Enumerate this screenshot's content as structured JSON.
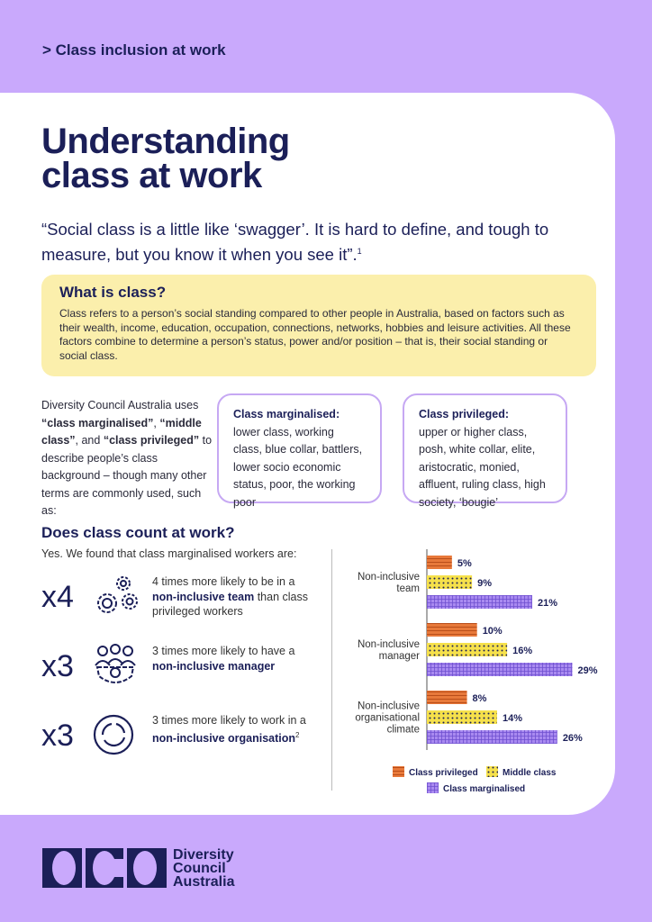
{
  "header": {
    "breadcrumb": "> Class inclusion at work"
  },
  "title": {
    "line1": "Understanding",
    "line2": "class at work"
  },
  "quote": {
    "text": "“Social class is a little like ‘swagger’. It is hard to define, and tough to measure, but you know it when you see it”.",
    "footnote": "1"
  },
  "what_is_class": {
    "heading": "What is class?",
    "body": "Class refers to a person’s social standing compared to other people in Australia, based on factors such as their wealth, income, education, occupation, connections, networks, hobbies and leisure activities. All these factors combine to determine a person’s status, power and/or position – that is, their social standing or social class."
  },
  "intro": {
    "p1": "Diversity Council Australia uses ",
    "t1": "“class marginalised”",
    "p2": ", ",
    "t2": "“middle class”",
    "p3": ", and ",
    "t3": "“class privileged”",
    "p4": " to describe people’s class background – though many other terms are commonly used, such as:"
  },
  "terms": [
    {
      "heading": "Class marginalised:",
      "body": "lower class, working class, blue collar, battlers, lower socio economic status, poor, the working poor"
    },
    {
      "heading": "Class privileged:",
      "body": "upper or higher class, posh, white collar, elite, aristocratic, monied, affluent, ruling class, high society, ‘bougie’"
    }
  ],
  "count": {
    "heading": "Does class count at work?",
    "intro": "Yes. We found that class marginalised workers are:"
  },
  "stats": [
    {
      "multiplier": "x4",
      "icon": "gears-icon",
      "pre": "4 times more likely to be in a ",
      "bold": "non-inclusive team",
      "post": " than class privileged workers",
      "sup": ""
    },
    {
      "multiplier": "x3",
      "icon": "team-gear-icon",
      "pre": "3 times more likely to have a ",
      "bold": "non-inclusive manager",
      "post": "",
      "sup": ""
    },
    {
      "multiplier": "x3",
      "icon": "cycle-circle-icon",
      "pre": "3 times more likely to work in a ",
      "bold": "non-inclusive organisation",
      "post": "",
      "sup": "2"
    }
  ],
  "chart_data": {
    "type": "bar",
    "orientation": "horizontal",
    "categories": [
      "Non-inclusive team",
      "Non-inclusive manager",
      "Non-inclusive organisational climate"
    ],
    "category_lines": [
      [
        "Non-inclusive",
        "team"
      ],
      [
        "Non-inclusive",
        "manager"
      ],
      [
        "Non-inclusive",
        "organisational",
        "climate"
      ]
    ],
    "series": [
      {
        "name": "Class privileged",
        "values": [
          5,
          10,
          8
        ],
        "color": "#e8793a",
        "pattern": "horizontal-lines"
      },
      {
        "name": "Middle class",
        "values": [
          9,
          16,
          14
        ],
        "color": "#f6e14b",
        "pattern": "dots"
      },
      {
        "name": "Class marginalised",
        "values": [
          21,
          29,
          26
        ],
        "color": "#a98af0",
        "pattern": "grid"
      }
    ],
    "unit": "%",
    "legend": "bottom"
  },
  "footer": {
    "logo_mark": "DCA",
    "logo_lines": [
      "Diversity",
      "Council",
      "Australia"
    ]
  },
  "colors": {
    "navy": "#1b1f58",
    "lavender": "#c9a9fc",
    "yellow": "#fbefac"
  }
}
